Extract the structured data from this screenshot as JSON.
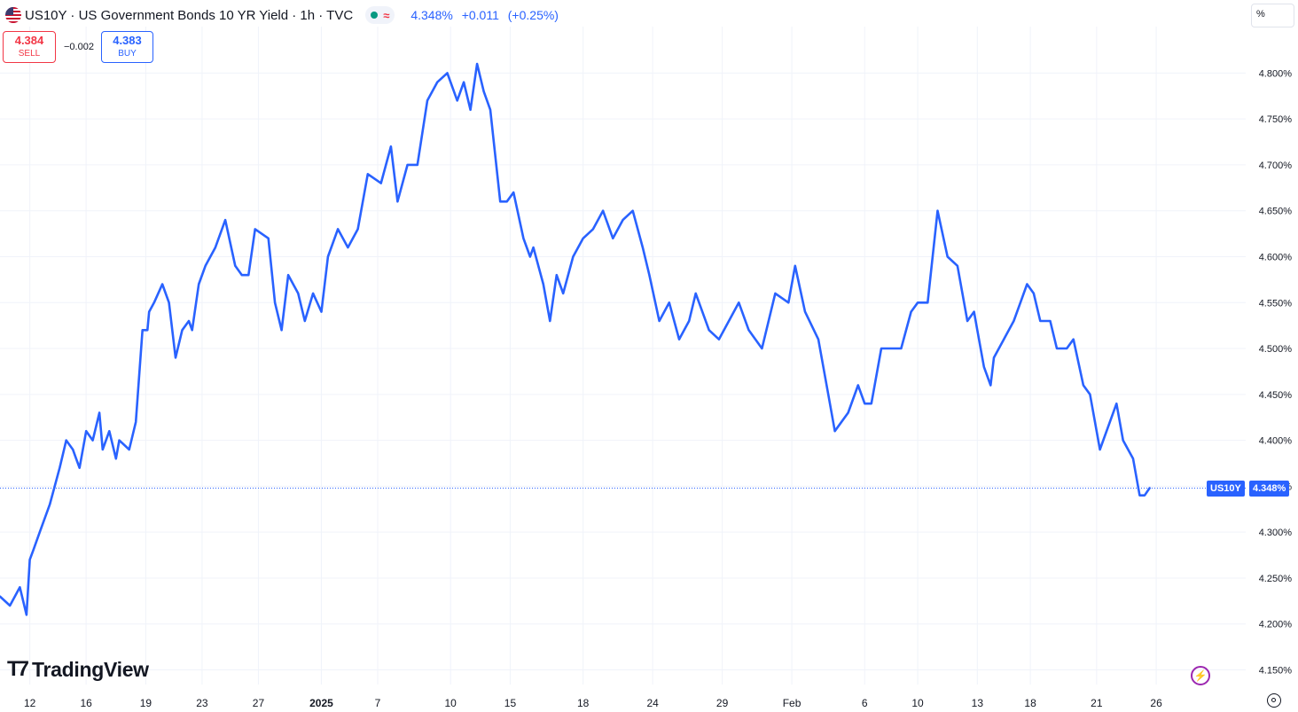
{
  "header": {
    "symbol": "US10Y",
    "name": "US Government Bonds 10 YR Yield",
    "interval": "1h",
    "source": "TVC",
    "title_full": "US10Y · US Government Bonds 10 YR Yield · 1h · TVC",
    "last": "4.348%",
    "change": "+0.011",
    "change_pct": "(+0.25%)"
  },
  "trade": {
    "sell_price": "4.384",
    "sell_label": "SELL",
    "spread": "−0.002",
    "buy_price": "4.383",
    "buy_label": "BUY"
  },
  "unit_label": "%",
  "branding": "TradingView",
  "last_tag": {
    "symbol": "US10Y",
    "value": "4.348%"
  },
  "colors": {
    "line": "#2962ff",
    "grid": "#f0f3fa",
    "axis_text": "#131722",
    "sell": "#f23645",
    "buy": "#2962ff"
  },
  "chart_data": {
    "type": "line",
    "title": "US10Y · US Government Bonds 10 YR Yield · 1h · TVC",
    "xlabel": "",
    "ylabel": "",
    "unit": "%",
    "ylim": [
      4.135,
      4.83
    ],
    "y_ticks": [
      4.15,
      4.2,
      4.25,
      4.3,
      4.35,
      4.4,
      4.45,
      4.5,
      4.55,
      4.6,
      4.65,
      4.7,
      4.75,
      4.8
    ],
    "y_tick_labels": [
      "4.150%",
      "4.200%",
      "4.250%",
      "4.300%",
      "4.350%",
      "4.400%",
      "4.450%",
      "4.500%",
      "4.550%",
      "4.600%",
      "4.650%",
      "4.700%",
      "4.750%",
      "4.800%"
    ],
    "x_ticks": [
      {
        "label": "12",
        "t": 0.9
      },
      {
        "label": "16",
        "t": 2.6
      },
      {
        "label": "19",
        "t": 4.4
      },
      {
        "label": "23",
        "t": 6.1
      },
      {
        "label": "27",
        "t": 7.8
      },
      {
        "label": "2025",
        "t": 9.7,
        "bold": true
      },
      {
        "label": "7",
        "t": 11.4
      },
      {
        "label": "10",
        "t": 13.6
      },
      {
        "label": "15",
        "t": 15.4
      },
      {
        "label": "18",
        "t": 17.6
      },
      {
        "label": "24",
        "t": 19.7
      },
      {
        "label": "29",
        "t": 21.8
      },
      {
        "label": "Feb",
        "t": 23.9
      },
      {
        "label": "6",
        "t": 26.1
      },
      {
        "label": "10",
        "t": 27.7
      },
      {
        "label": "13",
        "t": 29.5
      },
      {
        "label": "18",
        "t": 31.1
      },
      {
        "label": "21",
        "t": 33.1
      },
      {
        "label": "26",
        "t": 34.9
      }
    ],
    "t_range": [
      0,
      37.6
    ],
    "grid": true,
    "last_value": 4.348,
    "series": [
      {
        "t": [
          0.0,
          0.3,
          0.6,
          0.8,
          0.9,
          1.0,
          1.2,
          1.5,
          1.8,
          2.0,
          2.2,
          2.3,
          2.4,
          2.6,
          2.8,
          3.0,
          3.1,
          3.3,
          3.5,
          3.6,
          3.9,
          4.1,
          4.3,
          4.45,
          4.5,
          4.65,
          4.9,
          5.1,
          5.3,
          5.5,
          5.7,
          5.8,
          6.0,
          6.2,
          6.5,
          6.8,
          7.1,
          7.3,
          7.5,
          7.7,
          8.1,
          8.3,
          8.5,
          8.7,
          9.0,
          9.2,
          9.45,
          9.7,
          9.9,
          10.2,
          10.5,
          10.8,
          11.1,
          11.5,
          11.8,
          12.0,
          12.3,
          12.6,
          12.9,
          13.2,
          13.5,
          13.8,
          14.0,
          14.2,
          14.4,
          14.6,
          14.8,
          15.1,
          15.3,
          15.5,
          15.8,
          16.0,
          16.1,
          16.4,
          16.6,
          16.8,
          17.0,
          17.3,
          17.6,
          17.9,
          18.2,
          18.5,
          18.8,
          19.1,
          19.4,
          19.6,
          19.9,
          20.2,
          20.5,
          20.8,
          21.0,
          21.4,
          21.7,
          22.0,
          22.3,
          22.6,
          23.0,
          23.4,
          23.8,
          24.0,
          24.3,
          24.7,
          25.0,
          25.2,
          25.6,
          25.9,
          26.1,
          26.3,
          26.6,
          26.9,
          27.2,
          27.5,
          27.7,
          28.0,
          28.3,
          28.6,
          28.9,
          29.2,
          29.4,
          29.5,
          29.7,
          29.9,
          30.0,
          30.3,
          30.6,
          30.8,
          31.0,
          31.2,
          31.4,
          31.7,
          31.9,
          32.2,
          32.4,
          32.7,
          32.9,
          33.2,
          33.5,
          33.7,
          33.9,
          34.2,
          34.4,
          34.55,
          34.7
        ],
        "values": [
          4.23,
          4.22,
          4.24,
          4.21,
          4.27,
          4.28,
          4.3,
          4.33,
          4.37,
          4.4,
          4.39,
          4.38,
          4.37,
          4.41,
          4.4,
          4.43,
          4.39,
          4.41,
          4.38,
          4.4,
          4.39,
          4.42,
          4.52,
          4.52,
          4.54,
          4.55,
          4.57,
          4.55,
          4.49,
          4.52,
          4.53,
          4.52,
          4.57,
          4.59,
          4.61,
          4.64,
          4.59,
          4.58,
          4.58,
          4.63,
          4.62,
          4.55,
          4.52,
          4.58,
          4.56,
          4.53,
          4.56,
          4.54,
          4.6,
          4.63,
          4.61,
          4.63,
          4.69,
          4.68,
          4.72,
          4.66,
          4.7,
          4.7,
          4.77,
          4.79,
          4.8,
          4.77,
          4.79,
          4.76,
          4.81,
          4.78,
          4.76,
          4.66,
          4.66,
          4.67,
          4.62,
          4.6,
          4.61,
          4.57,
          4.53,
          4.58,
          4.56,
          4.6,
          4.62,
          4.63,
          4.65,
          4.62,
          4.64,
          4.65,
          4.61,
          4.58,
          4.53,
          4.55,
          4.51,
          4.53,
          4.56,
          4.52,
          4.51,
          4.53,
          4.55,
          4.52,
          4.5,
          4.56,
          4.55,
          4.59,
          4.54,
          4.51,
          4.45,
          4.41,
          4.43,
          4.46,
          4.44,
          4.44,
          4.5,
          4.5,
          4.5,
          4.54,
          4.55,
          4.55,
          4.65,
          4.6,
          4.59,
          4.53,
          4.54,
          4.52,
          4.48,
          4.46,
          4.49,
          4.51,
          4.53,
          4.55,
          4.57,
          4.56,
          4.53,
          4.53,
          4.5,
          4.5,
          4.51,
          4.46,
          4.45,
          4.39,
          4.42,
          4.44,
          4.4,
          4.38,
          4.34,
          4.34,
          4.348
        ]
      }
    ]
  }
}
